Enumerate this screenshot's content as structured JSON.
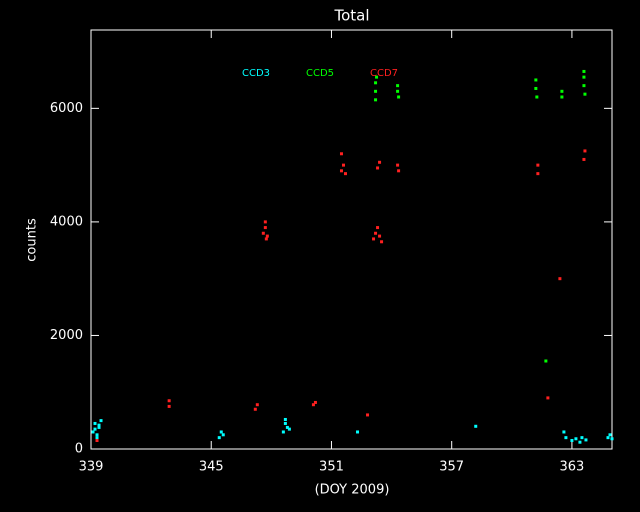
{
  "chart_data": {
    "type": "scatter",
    "title": "Total",
    "x_label": "(DOY 2009)",
    "y_label": "counts",
    "xlim": [
      339,
      365
    ],
    "xticks": [
      339,
      345,
      351,
      357,
      363
    ],
    "ylim": [
      0,
      7380
    ],
    "yticks": [
      0,
      2000,
      4000,
      6000
    ],
    "series": [
      {
        "name": "CCD3",
        "color": "#00ffff",
        "x": [
          339.1,
          339.2,
          339.3,
          339.4,
          339.5,
          339.3,
          339.2,
          339.4,
          345.4,
          345.5,
          345.6,
          348.6,
          348.7,
          348.8,
          348.7,
          348.9,
          352.3,
          358.2,
          362.6,
          362.7,
          363.0,
          363.2,
          363.4,
          363.5,
          363.7,
          364.8,
          364.9,
          365.0
        ],
        "y": [
          300,
          450,
          250,
          380,
          500,
          200,
          350,
          420,
          200,
          300,
          250,
          300,
          450,
          380,
          520,
          350,
          300,
          400,
          300,
          200,
          150,
          180,
          120,
          200,
          160,
          200,
          250,
          180
        ]
      },
      {
        "name": "CCD5",
        "color": "#00ff00",
        "x": [
          353.2,
          353.2,
          353.25,
          353.2,
          354.3,
          354.3,
          354.35,
          361.2,
          361.2,
          361.25,
          361.7,
          362.5,
          362.5,
          363.6,
          363.6,
          363.65,
          363.6
        ],
        "y": [
          6300,
          6450,
          6550,
          6150,
          6300,
          6400,
          6200,
          6350,
          6500,
          6200,
          1550,
          6300,
          6200,
          6400,
          6550,
          6250,
          6650
        ]
      },
      {
        "name": "CCD7",
        "color": "#ff2020",
        "x": [
          339.3,
          342.9,
          342.9,
          347.2,
          347.3,
          347.6,
          347.7,
          347.8,
          347.7,
          347.75,
          350.1,
          350.2,
          351.5,
          351.6,
          351.7,
          351.5,
          352.8,
          353.1,
          353.2,
          353.3,
          353.4,
          353.5,
          353.3,
          353.4,
          354.3,
          354.35,
          361.3,
          361.3,
          361.8,
          362.4,
          363.6,
          363.65
        ],
        "y": [
          150,
          750,
          850,
          700,
          780,
          3800,
          3900,
          3750,
          4000,
          3700,
          780,
          820,
          4900,
          5000,
          4850,
          5200,
          600,
          3700,
          3800,
          3900,
          3750,
          3650,
          4950,
          5050,
          5000,
          4900,
          5000,
          4850,
          900,
          3000,
          5100,
          5250
        ]
      }
    ]
  }
}
